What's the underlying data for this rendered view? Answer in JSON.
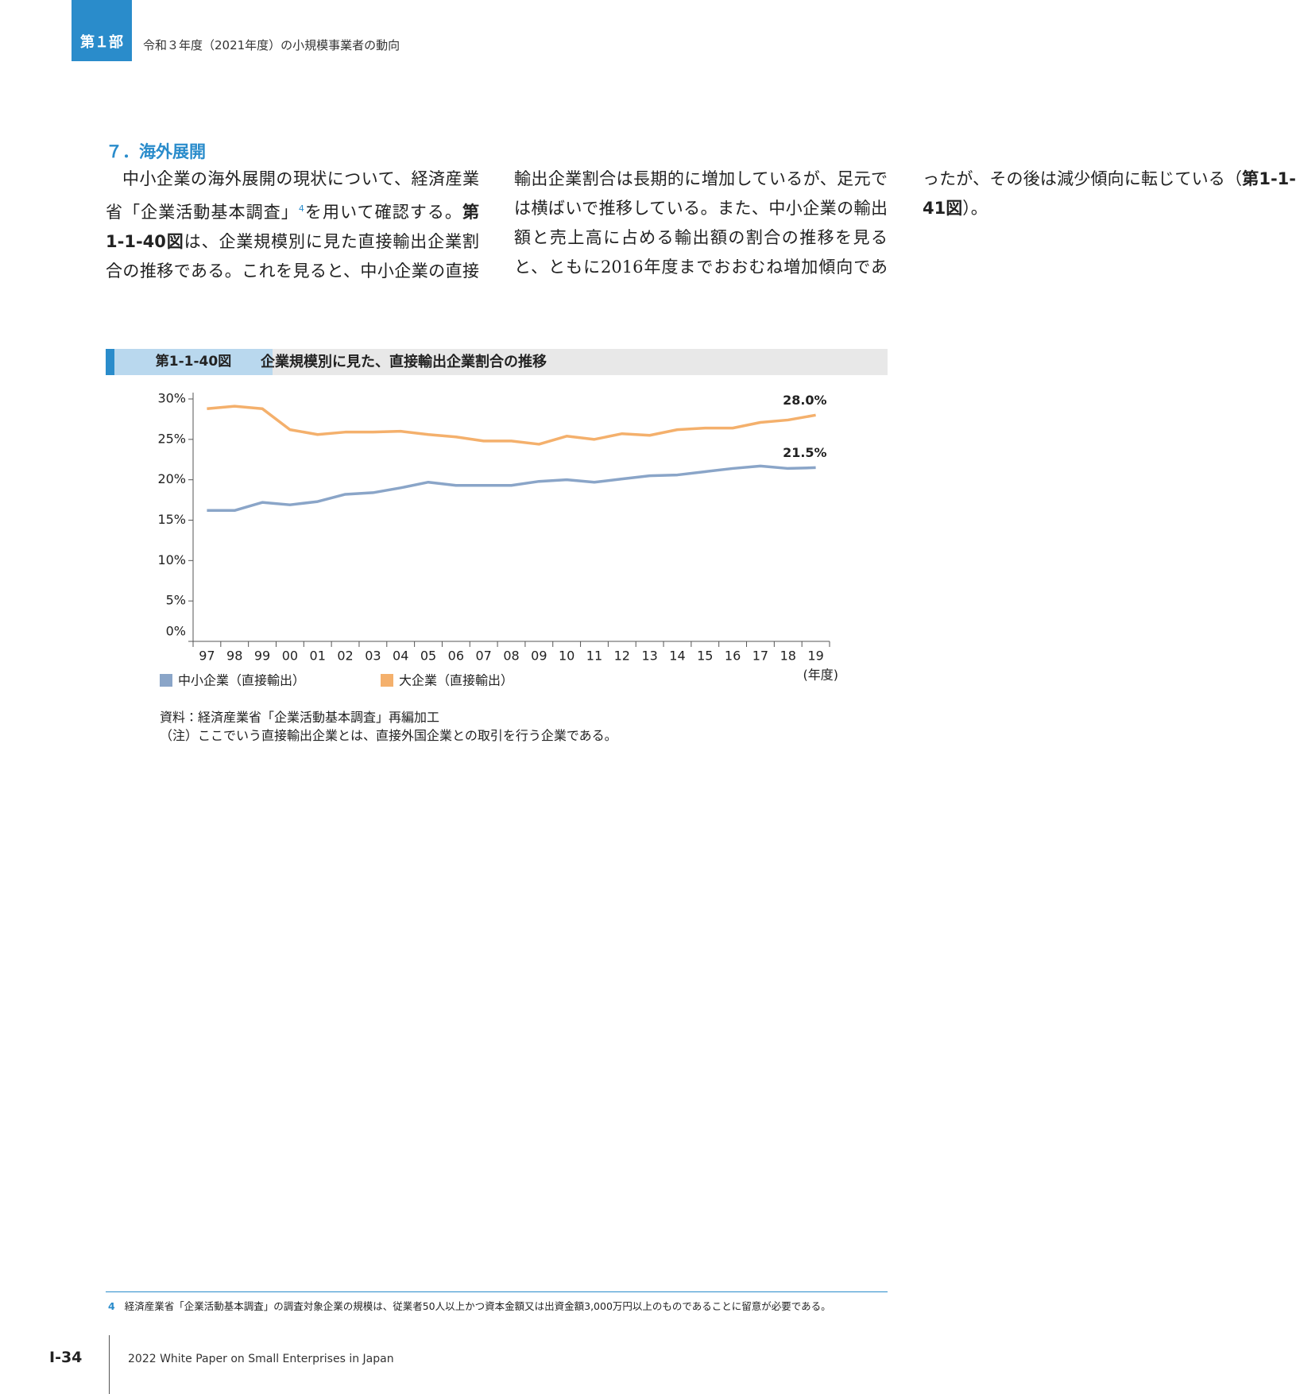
{
  "header": {
    "part": "第１部",
    "title": "令和３年度（2021年度）の小規模事業者の動向"
  },
  "section": {
    "heading": "７．海外展開"
  },
  "body": {
    "runs": [
      {
        "text": "中小企業の海外展開の現状について、経済産業省「企業活動基本調査」"
      },
      {
        "text": "4",
        "style": "sup"
      },
      {
        "text": "を用いて確認する。"
      },
      {
        "text": "第1-1-40図",
        "style": "bold"
      },
      {
        "text": "は、企業規模別に見た直接輸出企業割合の推移である。これを見ると、中小企業の直接輸出企業割合は長期的に増加しているが、足元では横ばいで推移している。また、中小企業の輸出額と売上高に占める輸出額の割合の推移を見ると、ともに2016年度までおおむね増加傾向であったが、その後は減少傾向に転じている（"
      },
      {
        "text": "第1-1-41図",
        "style": "bold"
      },
      {
        "text": "）。"
      }
    ]
  },
  "figure": {
    "number": "第1-1-40図",
    "title": "企業規模別に見た、直接輸出企業割合の推移",
    "source": "資料：経済産業省「企業活動基本調査」再編加工",
    "note": "（注）ここでいう直接輸出企業とは、直接外国企業との取引を行う企業である。"
  },
  "chart_data": {
    "type": "line",
    "categories": [
      "97",
      "98",
      "99",
      "00",
      "01",
      "02",
      "03",
      "04",
      "05",
      "06",
      "07",
      "08",
      "09",
      "10",
      "11",
      "12",
      "13",
      "14",
      "15",
      "16",
      "17",
      "18",
      "19"
    ],
    "x_label": "(年度)",
    "ylim": [
      0,
      30
    ],
    "yticks": [
      {
        "value": 0,
        "label": "0%"
      },
      {
        "value": 5,
        "label": "5%"
      },
      {
        "value": 10,
        "label": "10%"
      },
      {
        "value": 15,
        "label": "15%"
      },
      {
        "value": 20,
        "label": "20%"
      },
      {
        "value": 25,
        "label": "25%"
      },
      {
        "value": 30,
        "label": "30%"
      }
    ],
    "series": [
      {
        "name": "中小企業（直接輸出）",
        "color": "#8aa5c8",
        "values": [
          16.2,
          16.2,
          17.2,
          16.9,
          17.3,
          18.2,
          18.4,
          19.0,
          19.7,
          19.3,
          19.3,
          19.3,
          19.8,
          20.0,
          19.7,
          20.1,
          20.5,
          20.6,
          21.0,
          21.4,
          21.7,
          21.4,
          21.5
        ],
        "value_labels": [
          null,
          null,
          null,
          null,
          null,
          null,
          null,
          null,
          null,
          null,
          null,
          null,
          null,
          null,
          null,
          null,
          null,
          null,
          null,
          null,
          null,
          null,
          "21.5%"
        ]
      },
      {
        "name": "大企業（直接輸出）",
        "color": "#f4b06c",
        "values": [
          28.8,
          29.1,
          28.8,
          26.2,
          25.6,
          25.9,
          25.9,
          26.0,
          25.6,
          25.3,
          24.8,
          24.8,
          24.4,
          25.4,
          25.0,
          25.7,
          25.5,
          26.2,
          26.4,
          26.4,
          27.1,
          27.4,
          28.0
        ],
        "value_labels": [
          null,
          null,
          null,
          null,
          null,
          null,
          null,
          null,
          null,
          null,
          null,
          null,
          null,
          null,
          null,
          null,
          null,
          null,
          null,
          null,
          null,
          null,
          "28.0%"
        ]
      }
    ]
  },
  "footnote": {
    "number": "4",
    "text": "経済産業省「企業活動基本調査」の調査対象企業の規模は、従業者50人以上かつ資本金額又は出資金額3,000万円以上のものであることに留意が必要である。"
  },
  "footer": {
    "page": "I-34",
    "title": "2022 White Paper on Small Enterprises in Japan"
  }
}
